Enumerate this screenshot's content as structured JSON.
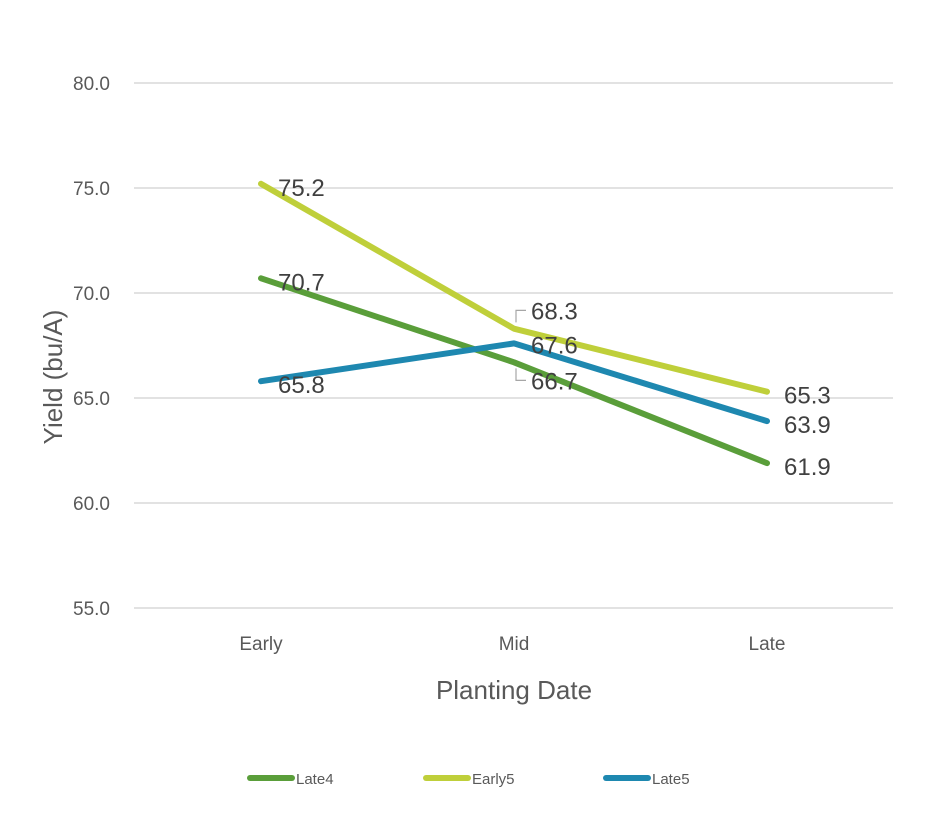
{
  "chart_data": {
    "type": "line",
    "title": "",
    "xlabel": "Planting Date",
    "ylabel": "Yield (bu/A)",
    "categories": [
      "Early",
      "Mid",
      "Late"
    ],
    "y_ticks": [
      "55.0",
      "60.0",
      "65.0",
      "70.0",
      "75.0",
      "80.0"
    ],
    "ylim": [
      55,
      80
    ],
    "grid": true,
    "legend_position": "bottom",
    "series": [
      {
        "name": "Late4",
        "color": "#5a9e3a",
        "values": [
          70.7,
          66.7,
          61.9
        ],
        "labels": [
          "70.7",
          "66.7",
          "61.9"
        ]
      },
      {
        "name": "Early5",
        "color": "#bfcf3a",
        "values": [
          75.2,
          68.3,
          65.3
        ],
        "labels": [
          "75.2",
          "68.3",
          "65.3"
        ]
      },
      {
        "name": "Late5",
        "color": "#1e88b0",
        "values": [
          65.8,
          67.6,
          63.9
        ],
        "labels": [
          "65.8",
          "67.6",
          "63.9"
        ]
      }
    ]
  }
}
